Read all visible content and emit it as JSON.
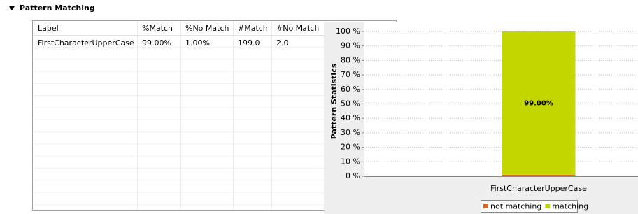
{
  "section": {
    "title": "Pattern Matching"
  },
  "table": {
    "columns": [
      "Label",
      "%Match",
      "%No Match",
      "#Match",
      "#No Match"
    ],
    "rows": [
      [
        "FirstCharacterUpperCase",
        "99.00%",
        "1.00%",
        "199.0",
        "2.0"
      ]
    ]
  },
  "chart_data": {
    "type": "stacked-bar",
    "y_label": "Pattern Statistics",
    "categories": [
      "FirstCharacterUpperCase"
    ],
    "series": [
      {
        "name": "not matching",
        "color": "#e0661c",
        "values": [
          1
        ]
      },
      {
        "name": "matching",
        "color": "#c4d600",
        "values": [
          99
        ],
        "value_labels": [
          "99.00%"
        ]
      }
    ],
    "ylim": [
      0,
      100
    ],
    "yticks": [
      {
        "value": 0,
        "label": "0 %"
      },
      {
        "value": 10,
        "label": "10 %"
      },
      {
        "value": 20,
        "label": "20 %"
      },
      {
        "value": 30,
        "label": "30 %"
      },
      {
        "value": 40,
        "label": "40 %"
      },
      {
        "value": 50,
        "label": "50 %"
      },
      {
        "value": 60,
        "label": "60 %"
      },
      {
        "value": 70,
        "label": "70 %"
      },
      {
        "value": 80,
        "label": "80 %"
      },
      {
        "value": 90,
        "label": "90 %"
      },
      {
        "value": 100,
        "label": "100 %"
      }
    ],
    "grid": true,
    "legend": "bottom"
  }
}
